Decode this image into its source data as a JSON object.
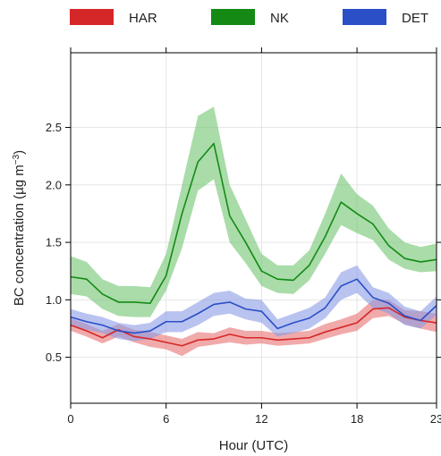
{
  "chart_data": {
    "type": "line",
    "xlabel": "Hour (UTC)",
    "ylabel_text": "BC concentration (µg m",
    "ylabel_exp": "−3",
    "ylabel_close": ")",
    "xlim": [
      0,
      23
    ],
    "ylim": [
      0.1,
      3.15
    ],
    "x_ticks": [
      0,
      6,
      12,
      18,
      23
    ],
    "x_tick_labels": [
      "0",
      "6",
      "12",
      "18",
      "23"
    ],
    "y_ticks": [
      0.5,
      1.0,
      1.5,
      2.0,
      2.5
    ],
    "y_tick_labels": [
      "0.5",
      "1.0",
      "1.5",
      "2.0",
      "2.5"
    ],
    "grid": true,
    "legend_position": "top",
    "x": [
      0,
      1,
      2,
      3,
      4,
      5,
      6,
      7,
      8,
      9,
      10,
      11,
      12,
      13,
      14,
      15,
      16,
      17,
      18,
      19,
      20,
      21,
      22,
      23
    ],
    "series": [
      {
        "name": "HAR",
        "color": "#d62728",
        "band_color": "#e87272",
        "values": [
          0.78,
          0.73,
          0.67,
          0.74,
          0.68,
          0.66,
          0.63,
          0.6,
          0.65,
          0.66,
          0.7,
          0.67,
          0.67,
          0.65,
          0.66,
          0.67,
          0.72,
          0.76,
          0.8,
          0.92,
          0.93,
          0.85,
          0.82,
          0.8
        ],
        "lower": [
          0.73,
          0.68,
          0.62,
          0.68,
          0.63,
          0.59,
          0.57,
          0.51,
          0.59,
          0.61,
          0.63,
          0.61,
          0.62,
          0.6,
          0.61,
          0.62,
          0.66,
          0.7,
          0.73,
          0.84,
          0.86,
          0.79,
          0.75,
          0.72
        ],
        "upper": [
          0.84,
          0.79,
          0.73,
          0.79,
          0.74,
          0.72,
          0.69,
          0.66,
          0.72,
          0.71,
          0.76,
          0.73,
          0.73,
          0.71,
          0.72,
          0.73,
          0.79,
          0.83,
          0.88,
          1.0,
          1.0,
          0.91,
          0.9,
          0.88
        ]
      },
      {
        "name": "NK",
        "color": "#148a14",
        "band_color": "#6fc46f",
        "values": [
          1.2,
          1.18,
          1.05,
          0.98,
          0.98,
          0.97,
          1.21,
          1.75,
          2.2,
          2.36,
          1.73,
          1.5,
          1.25,
          1.18,
          1.17,
          1.3,
          1.55,
          1.85,
          1.75,
          1.66,
          1.47,
          1.36,
          1.33,
          1.35
        ],
        "lower": [
          1.05,
          1.03,
          0.92,
          0.86,
          0.85,
          0.85,
          1.08,
          1.45,
          1.95,
          2.05,
          1.5,
          1.32,
          1.12,
          1.06,
          1.05,
          1.17,
          1.4,
          1.65,
          1.58,
          1.52,
          1.35,
          1.27,
          1.24,
          1.25
        ],
        "upper": [
          1.38,
          1.33,
          1.18,
          1.12,
          1.12,
          1.11,
          1.4,
          2.0,
          2.6,
          2.68,
          2.0,
          1.7,
          1.4,
          1.3,
          1.3,
          1.43,
          1.75,
          2.1,
          1.92,
          1.82,
          1.62,
          1.5,
          1.46,
          1.49
        ]
      },
      {
        "name": "DET",
        "color": "#2a4fc7",
        "band_color": "#8a9be6",
        "values": [
          0.85,
          0.81,
          0.78,
          0.73,
          0.71,
          0.73,
          0.81,
          0.81,
          0.88,
          0.96,
          0.98,
          0.92,
          0.9,
          0.75,
          0.8,
          0.84,
          0.93,
          1.12,
          1.18,
          1.02,
          0.97,
          0.86,
          0.82,
          0.95
        ],
        "lower": [
          0.78,
          0.74,
          0.71,
          0.66,
          0.64,
          0.66,
          0.72,
          0.72,
          0.78,
          0.86,
          0.88,
          0.83,
          0.8,
          0.68,
          0.71,
          0.75,
          0.84,
          1.0,
          1.06,
          0.93,
          0.88,
          0.78,
          0.75,
          0.87
        ],
        "upper": [
          0.92,
          0.88,
          0.85,
          0.8,
          0.78,
          0.8,
          0.9,
          0.9,
          0.98,
          1.06,
          1.08,
          1.01,
          1.0,
          0.83,
          0.88,
          0.93,
          1.02,
          1.24,
          1.3,
          1.11,
          1.06,
          0.94,
          0.9,
          1.03
        ]
      }
    ]
  }
}
